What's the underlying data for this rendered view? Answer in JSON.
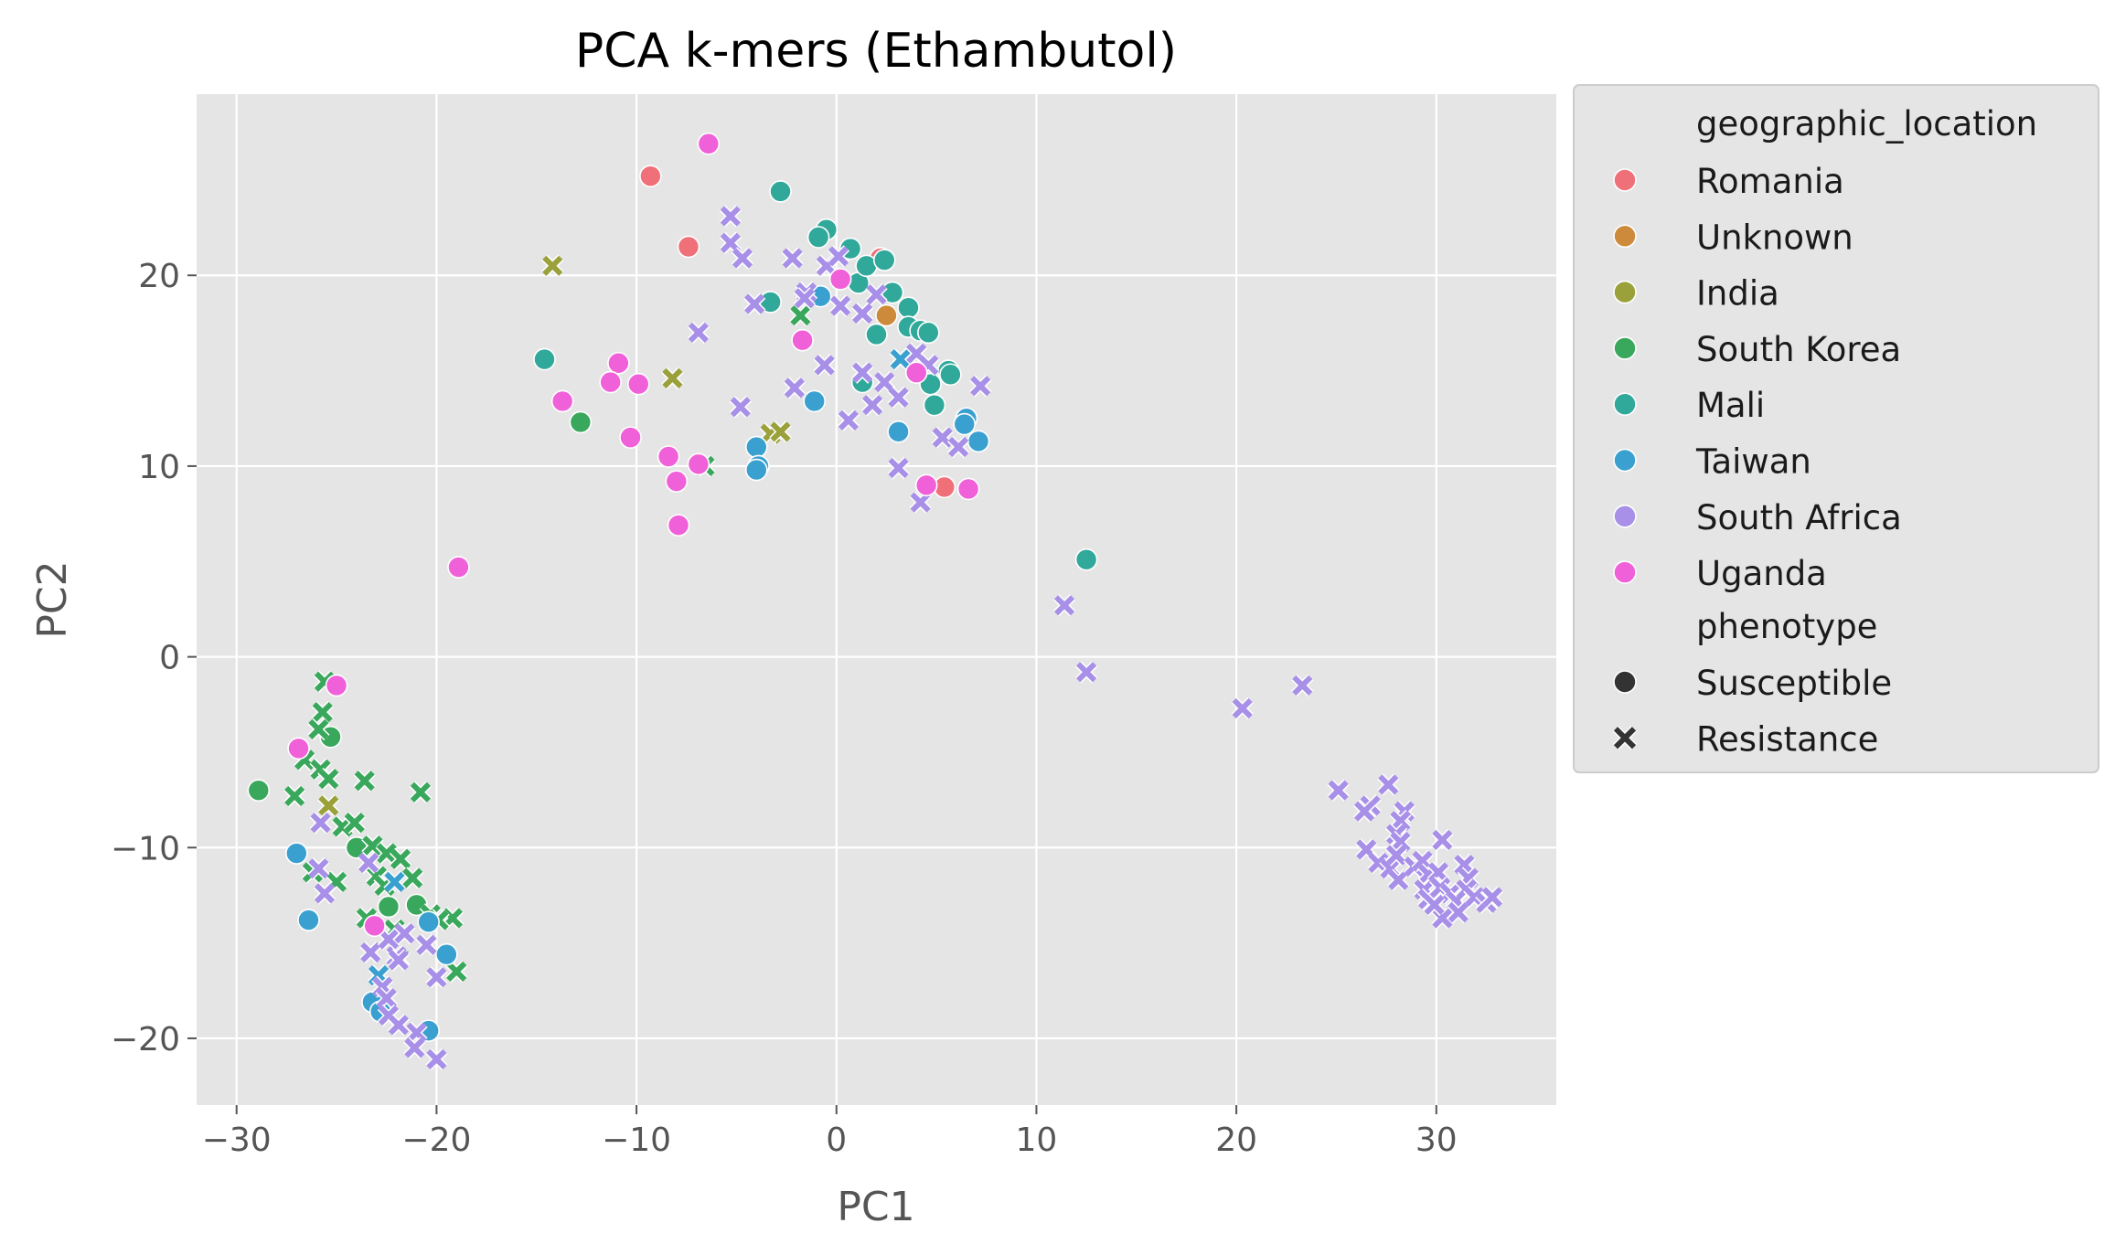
{
  "chart_data": {
    "type": "scatter",
    "title": "PCA k-mers (Ethambutol)",
    "xlabel": "PC1",
    "ylabel": "PC2",
    "xlim": [
      -32,
      36
    ],
    "ylim": [
      -23.5,
      29.5
    ],
    "xticks": [
      -30,
      -20,
      -10,
      0,
      10,
      20,
      30
    ],
    "yticks": [
      -20,
      -10,
      0,
      10,
      20
    ],
    "xtick_labels": [
      "−30",
      "−20",
      "−10",
      "0",
      "10",
      "20",
      "30"
    ],
    "ytick_labels": [
      "−20",
      "−10",
      "0",
      "10",
      "20"
    ],
    "grid": true,
    "legend_position": "outside-right",
    "legend": {
      "hue_title": "geographic_location",
      "style_title": "phenotype",
      "style_entries": [
        {
          "name": "Susceptible",
          "marker": "circle"
        },
        {
          "name": "Resistance",
          "marker": "x"
        }
      ]
    },
    "series": [
      {
        "name": "Romania",
        "color": "#f0707a",
        "points": [
          {
            "x": -9.3,
            "y": 25.2,
            "m": "o"
          },
          {
            "x": -7.4,
            "y": 21.5,
            "m": "o"
          },
          {
            "x": 5.4,
            "y": 8.9,
            "m": "o"
          },
          {
            "x": 2.2,
            "y": 20.9,
            "m": "o"
          }
        ]
      },
      {
        "name": "Unknown",
        "color": "#cc8a3a",
        "points": [
          {
            "x": 2.5,
            "y": 17.9,
            "m": "o"
          }
        ]
      },
      {
        "name": "India",
        "color": "#9aa03a",
        "points": [
          {
            "x": -14.2,
            "y": 20.5,
            "m": "x"
          },
          {
            "x": -8.2,
            "y": 14.6,
            "m": "x"
          },
          {
            "x": -3.3,
            "y": 11.7,
            "m": "x"
          },
          {
            "x": -2.8,
            "y": 11.8,
            "m": "x"
          },
          {
            "x": -25.4,
            "y": -7.8,
            "m": "x"
          }
        ]
      },
      {
        "name": "South Korea",
        "color": "#3aa85c",
        "points": [
          {
            "x": -28.9,
            "y": -7.0,
            "m": "o"
          },
          {
            "x": -12.8,
            "y": 12.3,
            "m": "o"
          },
          {
            "x": -25.3,
            "y": -4.2,
            "m": "o"
          },
          {
            "x": -24.0,
            "y": -10.0,
            "m": "o"
          },
          {
            "x": -22.4,
            "y": -13.1,
            "m": "o"
          },
          {
            "x": -21.0,
            "y": -13.0,
            "m": "o"
          },
          {
            "x": -1.8,
            "y": 17.9,
            "m": "x"
          },
          {
            "x": -6.6,
            "y": 10.0,
            "m": "x"
          },
          {
            "x": -25.6,
            "y": -1.3,
            "m": "x"
          },
          {
            "x": -25.7,
            "y": -2.9,
            "m": "x"
          },
          {
            "x": -25.9,
            "y": -3.8,
            "m": "x"
          },
          {
            "x": -26.6,
            "y": -5.4,
            "m": "x"
          },
          {
            "x": -25.8,
            "y": -5.9,
            "m": "x"
          },
          {
            "x": -25.4,
            "y": -6.4,
            "m": "x"
          },
          {
            "x": -27.1,
            "y": -7.3,
            "m": "x"
          },
          {
            "x": -23.6,
            "y": -6.5,
            "m": "x"
          },
          {
            "x": -20.8,
            "y": -7.1,
            "m": "x"
          },
          {
            "x": -24.7,
            "y": -8.9,
            "m": "x"
          },
          {
            "x": -24.1,
            "y": -8.7,
            "m": "x"
          },
          {
            "x": -23.2,
            "y": -9.9,
            "m": "x"
          },
          {
            "x": -22.5,
            "y": -10.3,
            "m": "x"
          },
          {
            "x": -21.8,
            "y": -10.6,
            "m": "x"
          },
          {
            "x": -23.0,
            "y": -11.5,
            "m": "x"
          },
          {
            "x": -22.6,
            "y": -12.0,
            "m": "x"
          },
          {
            "x": -21.2,
            "y": -11.6,
            "m": "x"
          },
          {
            "x": -26.2,
            "y": -11.3,
            "m": "x"
          },
          {
            "x": -25.0,
            "y": -11.8,
            "m": "x"
          },
          {
            "x": -23.5,
            "y": -13.7,
            "m": "x"
          },
          {
            "x": -20.3,
            "y": -13.5,
            "m": "x"
          },
          {
            "x": -19.2,
            "y": -13.7,
            "m": "x"
          },
          {
            "x": -21.9,
            "y": -15.8,
            "m": "x"
          },
          {
            "x": -19.0,
            "y": -16.5,
            "m": "x"
          },
          {
            "x": -22.1,
            "y": -14.3,
            "m": "x"
          },
          {
            "x": -19.9,
            "y": -13.8,
            "m": "x"
          }
        ]
      },
      {
        "name": "Mali",
        "color": "#30a89a",
        "points": [
          {
            "x": -2.8,
            "y": 24.4,
            "m": "o"
          },
          {
            "x": -14.6,
            "y": 15.6,
            "m": "o"
          },
          {
            "x": -3.3,
            "y": 18.6,
            "m": "o"
          },
          {
            "x": -0.5,
            "y": 22.4,
            "m": "o"
          },
          {
            "x": -0.9,
            "y": 22.0,
            "m": "o"
          },
          {
            "x": 0.7,
            "y": 21.4,
            "m": "o"
          },
          {
            "x": 1.1,
            "y": 19.6,
            "m": "o"
          },
          {
            "x": 1.5,
            "y": 20.5,
            "m": "o"
          },
          {
            "x": 2.4,
            "y": 20.8,
            "m": "o"
          },
          {
            "x": 2.8,
            "y": 19.1,
            "m": "o"
          },
          {
            "x": 2.0,
            "y": 16.9,
            "m": "o"
          },
          {
            "x": 3.6,
            "y": 18.3,
            "m": "o"
          },
          {
            "x": 3.6,
            "y": 17.3,
            "m": "o"
          },
          {
            "x": 4.2,
            "y": 17.1,
            "m": "o"
          },
          {
            "x": 4.6,
            "y": 17.0,
            "m": "o"
          },
          {
            "x": 5.6,
            "y": 15.0,
            "m": "o"
          },
          {
            "x": 5.7,
            "y": 14.8,
            "m": "o"
          },
          {
            "x": 4.7,
            "y": 14.3,
            "m": "o"
          },
          {
            "x": 4.9,
            "y": 13.2,
            "m": "o"
          },
          {
            "x": 1.3,
            "y": 14.4,
            "m": "o"
          },
          {
            "x": 12.5,
            "y": 5.1,
            "m": "o"
          }
        ]
      },
      {
        "name": "Taiwan",
        "color": "#3aa0d0",
        "points": [
          {
            "x": -1.1,
            "y": 13.4,
            "m": "o"
          },
          {
            "x": -4.0,
            "y": 11.0,
            "m": "o"
          },
          {
            "x": -3.9,
            "y": 10.0,
            "m": "o"
          },
          {
            "x": -4.0,
            "y": 9.8,
            "m": "o"
          },
          {
            "x": 3.1,
            "y": 11.8,
            "m": "o"
          },
          {
            "x": 6.5,
            "y": 12.5,
            "m": "o"
          },
          {
            "x": 6.4,
            "y": 12.2,
            "m": "o"
          },
          {
            "x": 7.1,
            "y": 11.3,
            "m": "o"
          },
          {
            "x": -0.8,
            "y": 18.9,
            "m": "o"
          },
          {
            "x": -27.0,
            "y": -10.3,
            "m": "o"
          },
          {
            "x": -26.4,
            "y": -13.8,
            "m": "o"
          },
          {
            "x": -20.4,
            "y": -13.9,
            "m": "o"
          },
          {
            "x": -19.5,
            "y": -15.6,
            "m": "o"
          },
          {
            "x": -23.2,
            "y": -18.1,
            "m": "o"
          },
          {
            "x": -20.4,
            "y": -19.6,
            "m": "o"
          },
          {
            "x": -22.8,
            "y": -18.6,
            "m": "o"
          },
          {
            "x": 3.2,
            "y": 15.6,
            "m": "x"
          },
          {
            "x": -22.1,
            "y": -11.8,
            "m": "x"
          },
          {
            "x": -22.9,
            "y": -16.7,
            "m": "x"
          }
        ]
      },
      {
        "name": "South Africa",
        "color": "#a890e8",
        "points": [
          {
            "x": -5.3,
            "y": 23.1,
            "m": "x"
          },
          {
            "x": -5.3,
            "y": 21.7,
            "m": "x"
          },
          {
            "x": -4.7,
            "y": 20.9,
            "m": "x"
          },
          {
            "x": -2.2,
            "y": 20.9,
            "m": "x"
          },
          {
            "x": -0.5,
            "y": 20.5,
            "m": "x"
          },
          {
            "x": 0.1,
            "y": 21.0,
            "m": "x"
          },
          {
            "x": -1.5,
            "y": 19.1,
            "m": "x"
          },
          {
            "x": -1.6,
            "y": 18.8,
            "m": "x"
          },
          {
            "x": 0.2,
            "y": 18.4,
            "m": "x"
          },
          {
            "x": 1.3,
            "y": 18.0,
            "m": "x"
          },
          {
            "x": 2.0,
            "y": 19.0,
            "m": "x"
          },
          {
            "x": -4.1,
            "y": 18.5,
            "m": "x"
          },
          {
            "x": -6.9,
            "y": 17.0,
            "m": "x"
          },
          {
            "x": -0.6,
            "y": 15.3,
            "m": "x"
          },
          {
            "x": 1.3,
            "y": 14.9,
            "m": "x"
          },
          {
            "x": 2.4,
            "y": 14.4,
            "m": "x"
          },
          {
            "x": 3.1,
            "y": 13.6,
            "m": "x"
          },
          {
            "x": 1.8,
            "y": 13.2,
            "m": "x"
          },
          {
            "x": -2.1,
            "y": 14.1,
            "m": "x"
          },
          {
            "x": -4.8,
            "y": 13.1,
            "m": "x"
          },
          {
            "x": 0.6,
            "y": 12.4,
            "m": "x"
          },
          {
            "x": 4.0,
            "y": 15.9,
            "m": "x"
          },
          {
            "x": 4.6,
            "y": 15.3,
            "m": "x"
          },
          {
            "x": 5.3,
            "y": 11.5,
            "m": "x"
          },
          {
            "x": 6.1,
            "y": 11.0,
            "m": "x"
          },
          {
            "x": 7.2,
            "y": 14.2,
            "m": "x"
          },
          {
            "x": 3.1,
            "y": 9.9,
            "m": "x"
          },
          {
            "x": 4.2,
            "y": 8.1,
            "m": "x"
          },
          {
            "x": 11.4,
            "y": 2.7,
            "m": "x"
          },
          {
            "x": 12.5,
            "y": -0.8,
            "m": "x"
          },
          {
            "x": 20.3,
            "y": -2.7,
            "m": "x"
          },
          {
            "x": 23.3,
            "y": -1.5,
            "m": "x"
          },
          {
            "x": 25.1,
            "y": -7.0,
            "m": "x"
          },
          {
            "x": 26.7,
            "y": -7.8,
            "m": "x"
          },
          {
            "x": 26.4,
            "y": -8.1,
            "m": "x"
          },
          {
            "x": 27.6,
            "y": -6.7,
            "m": "x"
          },
          {
            "x": 28.4,
            "y": -8.1,
            "m": "x"
          },
          {
            "x": 28.2,
            "y": -8.6,
            "m": "x"
          },
          {
            "x": 28.0,
            "y": -9.3,
            "m": "x"
          },
          {
            "x": 28.2,
            "y": -9.7,
            "m": "x"
          },
          {
            "x": 26.5,
            "y": -10.1,
            "m": "x"
          },
          {
            "x": 27.1,
            "y": -10.8,
            "m": "x"
          },
          {
            "x": 27.7,
            "y": -11.1,
            "m": "x"
          },
          {
            "x": 28.0,
            "y": -10.4,
            "m": "x"
          },
          {
            "x": 28.1,
            "y": -11.7,
            "m": "x"
          },
          {
            "x": 28.9,
            "y": -11.0,
            "m": "x"
          },
          {
            "x": 29.3,
            "y": -10.7,
            "m": "x"
          },
          {
            "x": 29.6,
            "y": -11.4,
            "m": "x"
          },
          {
            "x": 29.4,
            "y": -12.2,
            "m": "x"
          },
          {
            "x": 29.6,
            "y": -12.7,
            "m": "x"
          },
          {
            "x": 30.1,
            "y": -11.3,
            "m": "x"
          },
          {
            "x": 30.3,
            "y": -9.6,
            "m": "x"
          },
          {
            "x": 30.2,
            "y": -12.1,
            "m": "x"
          },
          {
            "x": 30.7,
            "y": -12.4,
            "m": "x"
          },
          {
            "x": 31.0,
            "y": -12.8,
            "m": "x"
          },
          {
            "x": 31.4,
            "y": -10.9,
            "m": "x"
          },
          {
            "x": 31.6,
            "y": -11.6,
            "m": "x"
          },
          {
            "x": 31.5,
            "y": -12.2,
            "m": "x"
          },
          {
            "x": 31.9,
            "y": -12.6,
            "m": "x"
          },
          {
            "x": 30.3,
            "y": -13.7,
            "m": "x"
          },
          {
            "x": 31.1,
            "y": -13.4,
            "m": "x"
          },
          {
            "x": 32.5,
            "y": -12.9,
            "m": "x"
          },
          {
            "x": 32.8,
            "y": -12.6,
            "m": "x"
          },
          {
            "x": 29.9,
            "y": -13.0,
            "m": "x"
          },
          {
            "x": -25.8,
            "y": -8.7,
            "m": "x"
          },
          {
            "x": -25.9,
            "y": -11.1,
            "m": "x"
          },
          {
            "x": -25.6,
            "y": -12.4,
            "m": "x"
          },
          {
            "x": -23.4,
            "y": -10.8,
            "m": "x"
          },
          {
            "x": -23.3,
            "y": -15.5,
            "m": "x"
          },
          {
            "x": -22.4,
            "y": -14.8,
            "m": "x"
          },
          {
            "x": -22.0,
            "y": -15.7,
            "m": "x"
          },
          {
            "x": -21.6,
            "y": -14.5,
            "m": "x"
          },
          {
            "x": -20.5,
            "y": -15.1,
            "m": "x"
          },
          {
            "x": -22.7,
            "y": -17.3,
            "m": "x"
          },
          {
            "x": -22.5,
            "y": -17.9,
            "m": "x"
          },
          {
            "x": -20.0,
            "y": -16.8,
            "m": "x"
          },
          {
            "x": -22.4,
            "y": -18.8,
            "m": "x"
          },
          {
            "x": -21.9,
            "y": -19.3,
            "m": "x"
          },
          {
            "x": -21.0,
            "y": -19.7,
            "m": "x"
          },
          {
            "x": -21.1,
            "y": -20.5,
            "m": "x"
          },
          {
            "x": -20.0,
            "y": -21.1,
            "m": "x"
          },
          {
            "x": -21.9,
            "y": -15.9,
            "m": "x"
          }
        ]
      },
      {
        "name": "Uganda",
        "color": "#f060d8",
        "points": [
          {
            "x": -6.4,
            "y": 26.9,
            "m": "o"
          },
          {
            "x": 0.2,
            "y": 19.8,
            "m": "o"
          },
          {
            "x": -1.7,
            "y": 16.6,
            "m": "o"
          },
          {
            "x": -10.9,
            "y": 15.4,
            "m": "o"
          },
          {
            "x": -11.3,
            "y": 14.4,
            "m": "o"
          },
          {
            "x": -9.9,
            "y": 14.3,
            "m": "o"
          },
          {
            "x": -13.7,
            "y": 13.4,
            "m": "o"
          },
          {
            "x": -10.3,
            "y": 11.5,
            "m": "o"
          },
          {
            "x": -8.4,
            "y": 10.5,
            "m": "o"
          },
          {
            "x": -6.9,
            "y": 10.1,
            "m": "o"
          },
          {
            "x": -8.0,
            "y": 9.2,
            "m": "o"
          },
          {
            "x": -7.9,
            "y": 6.9,
            "m": "o"
          },
          {
            "x": -18.9,
            "y": 4.7,
            "m": "o"
          },
          {
            "x": 4.0,
            "y": 14.9,
            "m": "o"
          },
          {
            "x": 4.5,
            "y": 9.0,
            "m": "o"
          },
          {
            "x": 6.6,
            "y": 8.8,
            "m": "o"
          },
          {
            "x": -25.0,
            "y": -1.5,
            "m": "o"
          },
          {
            "x": -26.9,
            "y": -4.8,
            "m": "o"
          },
          {
            "x": -23.1,
            "y": -14.1,
            "m": "o"
          }
        ]
      }
    ]
  }
}
